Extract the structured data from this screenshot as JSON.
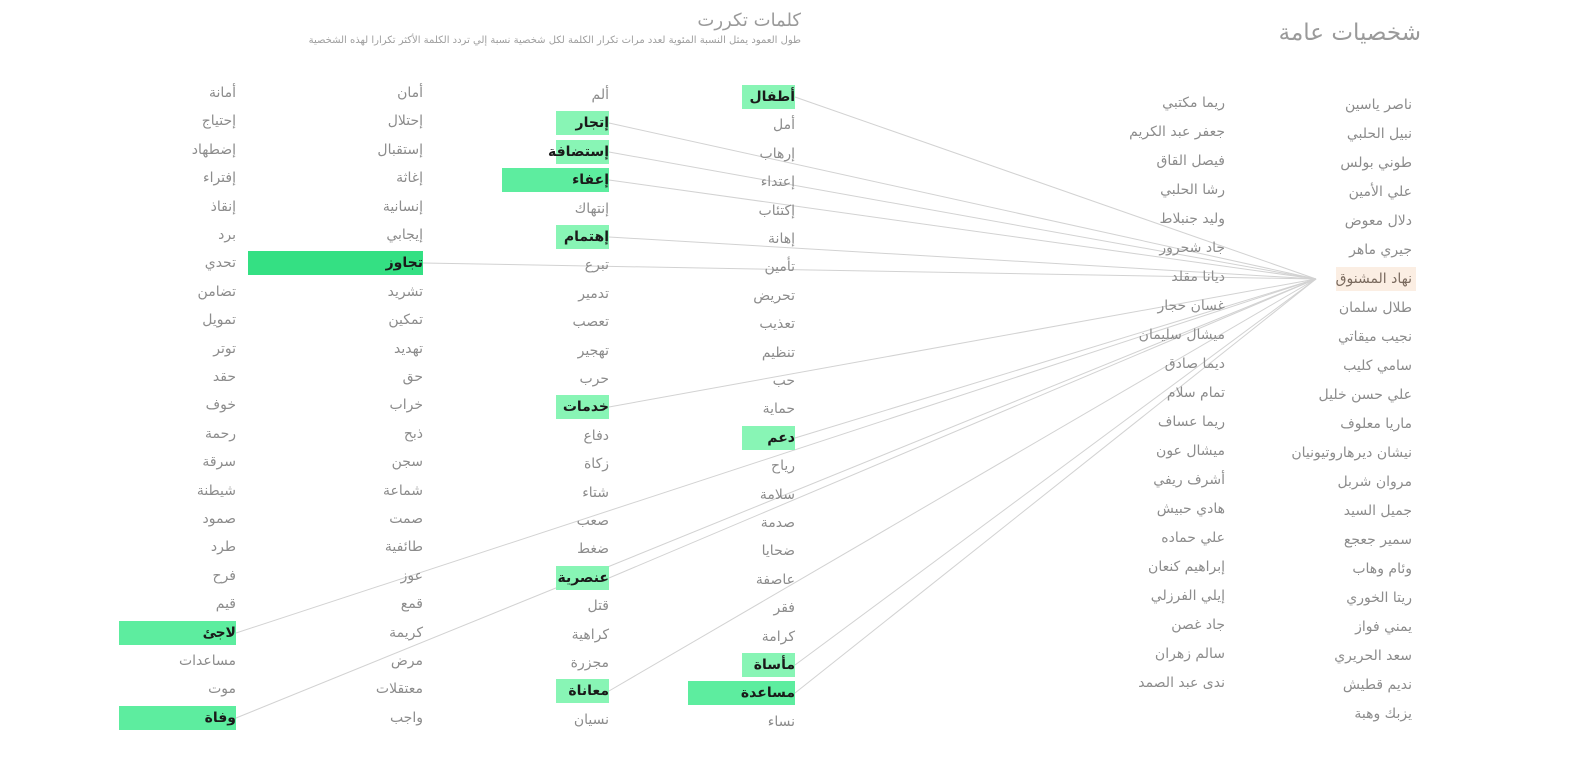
{
  "header": {
    "people_title": "شخصيات عامة",
    "words_title": "كلمات تكررت",
    "words_subtitle": "طول العمود يمثل النسبة المئوية لعدد مرات تكرار الكلمة لكل شخصية نسبة إلي تردد الكلمة الأكثر تكرارا لهذه الشخصية"
  },
  "selected_person": "نهاد المشنوق",
  "people": {
    "col1": [
      "ناصر ياسين",
      "نبيل الحلبي",
      "طوني بولس",
      "علي الأمين",
      "دلال معوض",
      "جيري ماهر",
      "نهاد المشنوق",
      "طلال سلمان",
      "نجيب ميقاتي",
      "سامي كليب",
      "علي حسن خليل",
      "ماريا معلوف",
      "نيشان ديرهاروتيونيان",
      "مروان شربل",
      "جميل السيد",
      "سمير جعجع",
      "وئام وهاب",
      "ريتا الخوري",
      "يمني فواز",
      "سعد الحريري",
      "نديم قطيش",
      "يزبك وهبة"
    ],
    "col2": [
      "ريما مكتبي",
      "جعفر عبد الكريم",
      "فيصل القاق",
      "رشا الحلبي",
      "وليد جنبلاط",
      "جاد شحرور",
      "ديانا مقلد",
      "غسان حجار",
      "ميشال سليمان",
      "ديما صادق",
      "تمام سلام",
      "ريما عساف",
      "ميشال عون",
      "أشرف ريفي",
      "هادي حبيش",
      "علي حماده",
      "إبراهيم كنعان",
      "إيلي الفرزلي",
      "جاد غصن",
      "سالم زهران",
      "ندى عبد الصمد"
    ]
  },
  "words": {
    "col1": [
      {
        "label": "أطفال",
        "pct": 0.33
      },
      {
        "label": "أمل",
        "pct": 0
      },
      {
        "label": "إرهاب",
        "pct": 0
      },
      {
        "label": "إعتداء",
        "pct": 0
      },
      {
        "label": "إكتئاب",
        "pct": 0
      },
      {
        "label": "إهانة",
        "pct": 0
      },
      {
        "label": "تأمين",
        "pct": 0
      },
      {
        "label": "تحريض",
        "pct": 0
      },
      {
        "label": "تعذيب",
        "pct": 0
      },
      {
        "label": "تنظيم",
        "pct": 0
      },
      {
        "label": "حب",
        "pct": 0
      },
      {
        "label": "حماية",
        "pct": 0
      },
      {
        "label": "دعم",
        "pct": 0.33
      },
      {
        "label": "رياح",
        "pct": 0
      },
      {
        "label": "سلامة",
        "pct": 0
      },
      {
        "label": "صدمة",
        "pct": 0
      },
      {
        "label": "ضحايا",
        "pct": 0
      },
      {
        "label": "عاصفة",
        "pct": 0
      },
      {
        "label": "فقر",
        "pct": 0
      },
      {
        "label": "كرامة",
        "pct": 0
      },
      {
        "label": "مأساة",
        "pct": 0.33
      },
      {
        "label": "مساعدة",
        "pct": 0.67
      },
      {
        "label": "نساء",
        "pct": 0
      }
    ],
    "col2": [
      {
        "label": "ألم",
        "pct": 0
      },
      {
        "label": "إتجار",
        "pct": 0.33
      },
      {
        "label": "إستضافة",
        "pct": 0.33
      },
      {
        "label": "إعفاء",
        "pct": 0.67
      },
      {
        "label": "إنتهاك",
        "pct": 0
      },
      {
        "label": "إهتمام",
        "pct": 0.33
      },
      {
        "label": "تبرع",
        "pct": 0
      },
      {
        "label": "تدمير",
        "pct": 0
      },
      {
        "label": "تعصب",
        "pct": 0
      },
      {
        "label": "تهجير",
        "pct": 0
      },
      {
        "label": "حرب",
        "pct": 0
      },
      {
        "label": "خدمات",
        "pct": 0.33
      },
      {
        "label": "دفاع",
        "pct": 0
      },
      {
        "label": "زكاة",
        "pct": 0
      },
      {
        "label": "شتاء",
        "pct": 0
      },
      {
        "label": "صعب",
        "pct": 0
      },
      {
        "label": "ضغط",
        "pct": 0
      },
      {
        "label": "عنصرية",
        "pct": 0.33
      },
      {
        "label": "قتل",
        "pct": 0
      },
      {
        "label": "كراهية",
        "pct": 0
      },
      {
        "label": "مجزرة",
        "pct": 0
      },
      {
        "label": "معاناة",
        "pct": 0.33
      },
      {
        "label": "نسيان",
        "pct": 0
      }
    ],
    "col3": [
      {
        "label": "أمان",
        "pct": 0
      },
      {
        "label": "إحتلال",
        "pct": 0
      },
      {
        "label": "إستقبال",
        "pct": 0
      },
      {
        "label": "إغاثة",
        "pct": 0
      },
      {
        "label": "إنسانية",
        "pct": 0
      },
      {
        "label": "إيجابي",
        "pct": 0
      },
      {
        "label": "تجاوز",
        "pct": 1.0
      },
      {
        "label": "تشريد",
        "pct": 0
      },
      {
        "label": "تمكين",
        "pct": 0
      },
      {
        "label": "تهديد",
        "pct": 0
      },
      {
        "label": "حق",
        "pct": 0
      },
      {
        "label": "خراب",
        "pct": 0
      },
      {
        "label": "ذبح",
        "pct": 0
      },
      {
        "label": "سجن",
        "pct": 0
      },
      {
        "label": "شماعة",
        "pct": 0
      },
      {
        "label": "صمت",
        "pct": 0
      },
      {
        "label": "طائفية",
        "pct": 0
      },
      {
        "label": "عوز",
        "pct": 0
      },
      {
        "label": "قمع",
        "pct": 0
      },
      {
        "label": "كريمة",
        "pct": 0
      },
      {
        "label": "مرض",
        "pct": 0
      },
      {
        "label": "معتقلات",
        "pct": 0
      },
      {
        "label": "واجب",
        "pct": 0
      }
    ],
    "col4": [
      {
        "label": "أمانة",
        "pct": 0
      },
      {
        "label": "إحتياج",
        "pct": 0
      },
      {
        "label": "إضطهاد",
        "pct": 0
      },
      {
        "label": "إفتراء",
        "pct": 0
      },
      {
        "label": "إنقاذ",
        "pct": 0
      },
      {
        "label": "برد",
        "pct": 0
      },
      {
        "label": "تحدي",
        "pct": 0
      },
      {
        "label": "تضامن",
        "pct": 0
      },
      {
        "label": "تمويل",
        "pct": 0
      },
      {
        "label": "توتر",
        "pct": 0
      },
      {
        "label": "حقد",
        "pct": 0
      },
      {
        "label": "خوف",
        "pct": 0
      },
      {
        "label": "رحمة",
        "pct": 0
      },
      {
        "label": "سرقة",
        "pct": 0
      },
      {
        "label": "شيطنة",
        "pct": 0
      },
      {
        "label": "صمود",
        "pct": 0
      },
      {
        "label": "طرد",
        "pct": 0
      },
      {
        "label": "فرح",
        "pct": 0
      },
      {
        "label": "قيم",
        "pct": 0
      },
      {
        "label": "لاجئ",
        "pct": 0.67
      },
      {
        "label": "مساعدات",
        "pct": 0
      },
      {
        "label": "موت",
        "pct": 0
      },
      {
        "label": "وفاة",
        "pct": 0.67
      }
    ]
  },
  "colors": {
    "bar_low": "#88f5b5",
    "bar_mid": "#5ded9f",
    "bar_high": "#34e083",
    "selected_bg": "#fbeee3",
    "connector": "#d2d2d2"
  }
}
